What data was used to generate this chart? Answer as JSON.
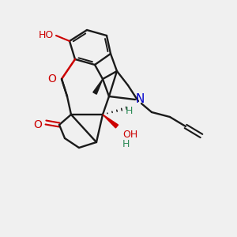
{
  "bg_color": "#f0f0f0",
  "fig_width": 3.0,
  "fig_height": 3.0,
  "dpi": 100,
  "colors": {
    "bond": "#1a1a1a",
    "O": "#cc0000",
    "N": "#0000cc",
    "H": "#2e8b57"
  }
}
